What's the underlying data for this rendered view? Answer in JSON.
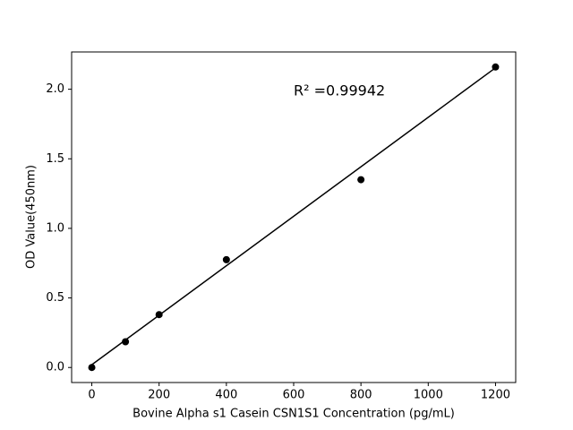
{
  "chart_data": {
    "type": "scatter",
    "xlabel": "Bovine Alpha s1 Casein CSN1S1 Concentration (pg/mL)",
    "ylabel": "OD Value(450nm)",
    "annotation": "R² =0.99942",
    "series": [
      {
        "mode": "markers",
        "color": "#000000",
        "x": [
          0,
          100,
          200,
          400,
          800,
          1200
        ],
        "values": [
          0,
          0.185,
          0.38,
          0.775,
          1.35,
          2.16
        ]
      },
      {
        "mode": "line",
        "color": "#000000",
        "x": [
          0,
          1200
        ],
        "values": [
          0.02,
          2.154
        ]
      }
    ],
    "xlim": [
      -60,
      1260
    ],
    "ylim": [
      -0.108,
      2.268
    ],
    "xticks": [
      0,
      200,
      400,
      600,
      800,
      1000,
      1200
    ],
    "yticks": [
      {
        "value": 0,
        "label": "0.0"
      },
      0.5,
      {
        "value": 1,
        "label": "1.0"
      },
      1.5,
      {
        "value": 2,
        "label": "2.0"
      }
    ],
    "grid": false
  }
}
